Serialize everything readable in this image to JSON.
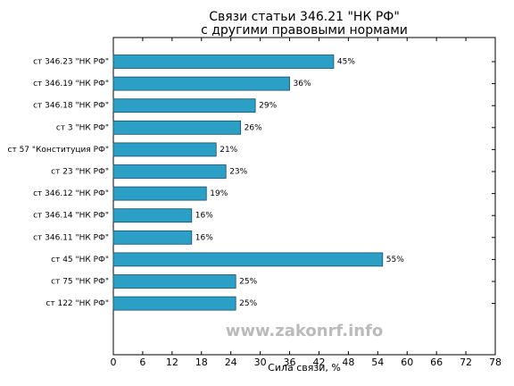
{
  "chart_data": {
    "type": "bar",
    "orientation": "horizontal",
    "title": [
      "Связи статьи 346.21 \"НК РФ\"",
      "с другими правовыми нормами"
    ],
    "x_label": "Сила связи, %",
    "categories": [
      "ст 346.23 \"НК РФ\"",
      "ст 346.19 \"НК РФ\"",
      "ст 346.18 \"НК РФ\"",
      "ст 3 \"НК РФ\"",
      "ст 57 \"Конституция РФ\"",
      "ст 23 \"НК РФ\"",
      "ст 346.12 \"НК РФ\"",
      "ст 346.14 \"НК РФ\"",
      "ст 346.11 \"НК РФ\"",
      "ст 45 \"НК РФ\"",
      "ст 75 \"НК РФ\"",
      "ст 122 \"НК РФ\""
    ],
    "values": [
      45,
      36,
      29,
      26,
      21,
      23,
      19,
      16,
      16,
      55,
      25,
      25
    ],
    "value_labels": [
      "45%",
      "36%",
      "29%",
      "26%",
      "21%",
      "23%",
      "19%",
      "16%",
      "16%",
      "55%",
      "25%",
      "25%"
    ],
    "color": "#2b9fc6",
    "xlim": [
      0,
      78
    ],
    "xticks": [
      0,
      6,
      12,
      18,
      24,
      30,
      36,
      42,
      48,
      54,
      60,
      66,
      72,
      78
    ],
    "annotation": "www.zakonrf.info"
  }
}
